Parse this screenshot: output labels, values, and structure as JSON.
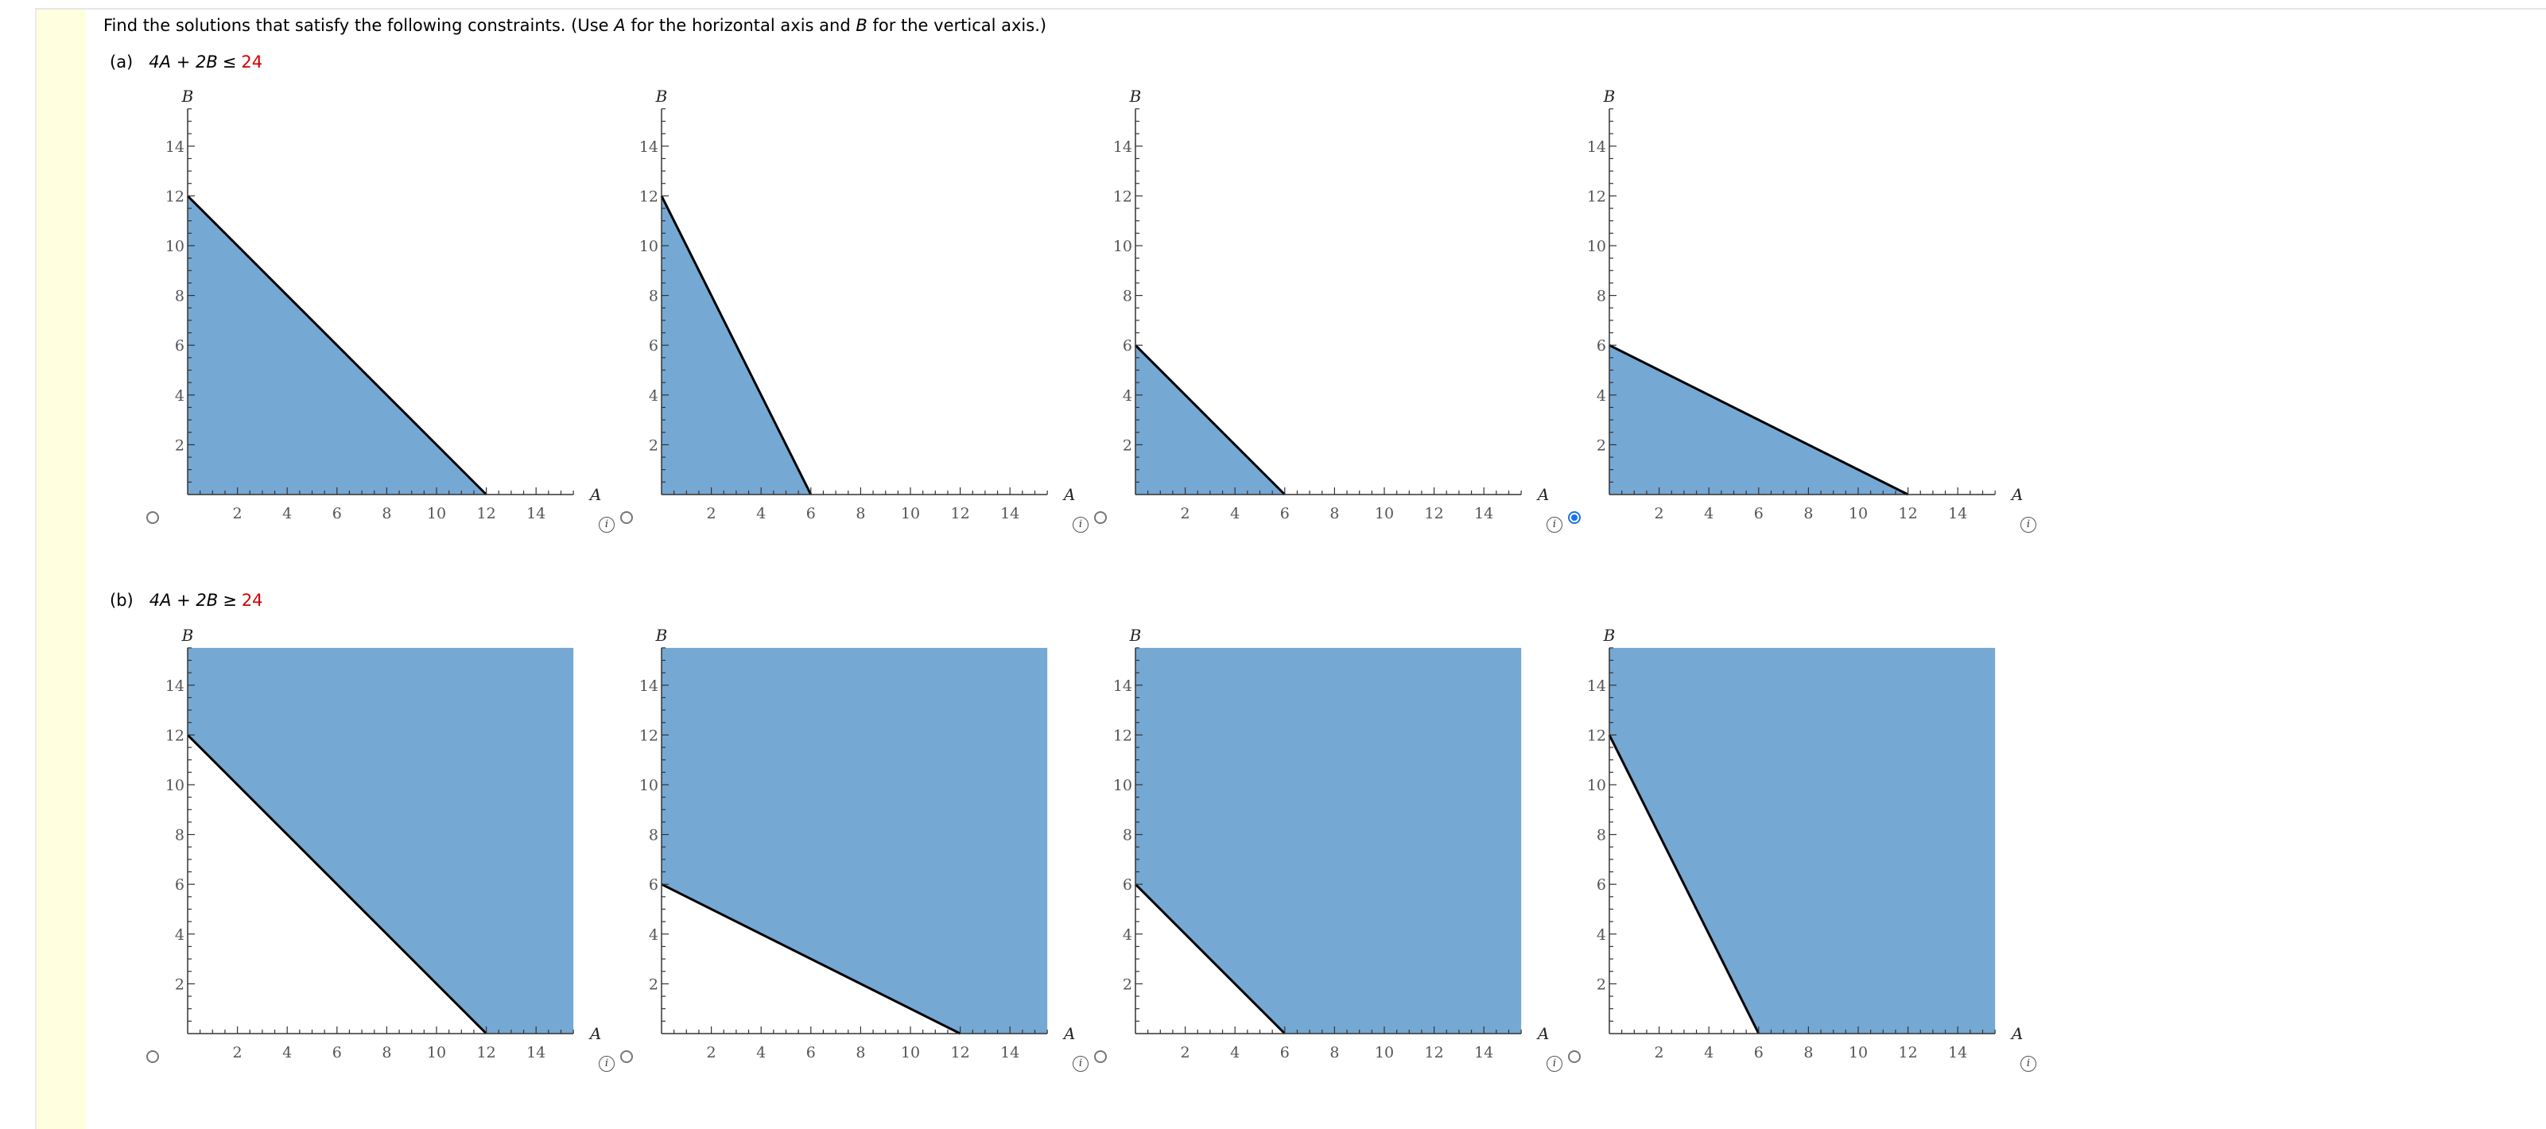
{
  "instruction": {
    "prefix": "Find the solutions that satisfy the following constraints. (Use ",
    "var_a": "A",
    "mid": " for the horizontal axis and ",
    "var_b": "B",
    "suffix": " for the vertical axis.)"
  },
  "parts": [
    {
      "label": "(a)",
      "lhs": "4A + 2B",
      "symbol": "≤",
      "rhs": "24",
      "selected_index": 3,
      "choices": [
        {
          "shade": "below",
          "a_intercept": 12,
          "b_intercept": 12
        },
        {
          "shade": "below",
          "a_intercept": 6,
          "b_intercept": 12
        },
        {
          "shade": "below",
          "a_intercept": 6,
          "b_intercept": 6
        },
        {
          "shade": "below",
          "a_intercept": 12,
          "b_intercept": 6
        }
      ]
    },
    {
      "label": "(b)",
      "lhs": "4A + 2B",
      "symbol": "≥",
      "rhs": "24",
      "selected_index": null,
      "choices": [
        {
          "shade": "above",
          "a_intercept": 12,
          "b_intercept": 12
        },
        {
          "shade": "above",
          "a_intercept": 12,
          "b_intercept": 6
        },
        {
          "shade": "above",
          "a_intercept": 6,
          "b_intercept": 6
        },
        {
          "shade": "above",
          "a_intercept": 6,
          "b_intercept": 12
        }
      ]
    }
  ],
  "graph": {
    "x_axis_label": "A",
    "y_axis_label": "B",
    "x_ticks": [
      "2",
      "4",
      "6",
      "8",
      "10",
      "12",
      "14"
    ],
    "y_ticks": [
      "2",
      "4",
      "6",
      "8",
      "10",
      "12",
      "14"
    ],
    "x_max": 15.5,
    "y_max": 15.5,
    "fill_color": "#75a8d2",
    "line_color": "#000000",
    "axis_color": "#333333"
  },
  "info_icon_glyph": "i"
}
